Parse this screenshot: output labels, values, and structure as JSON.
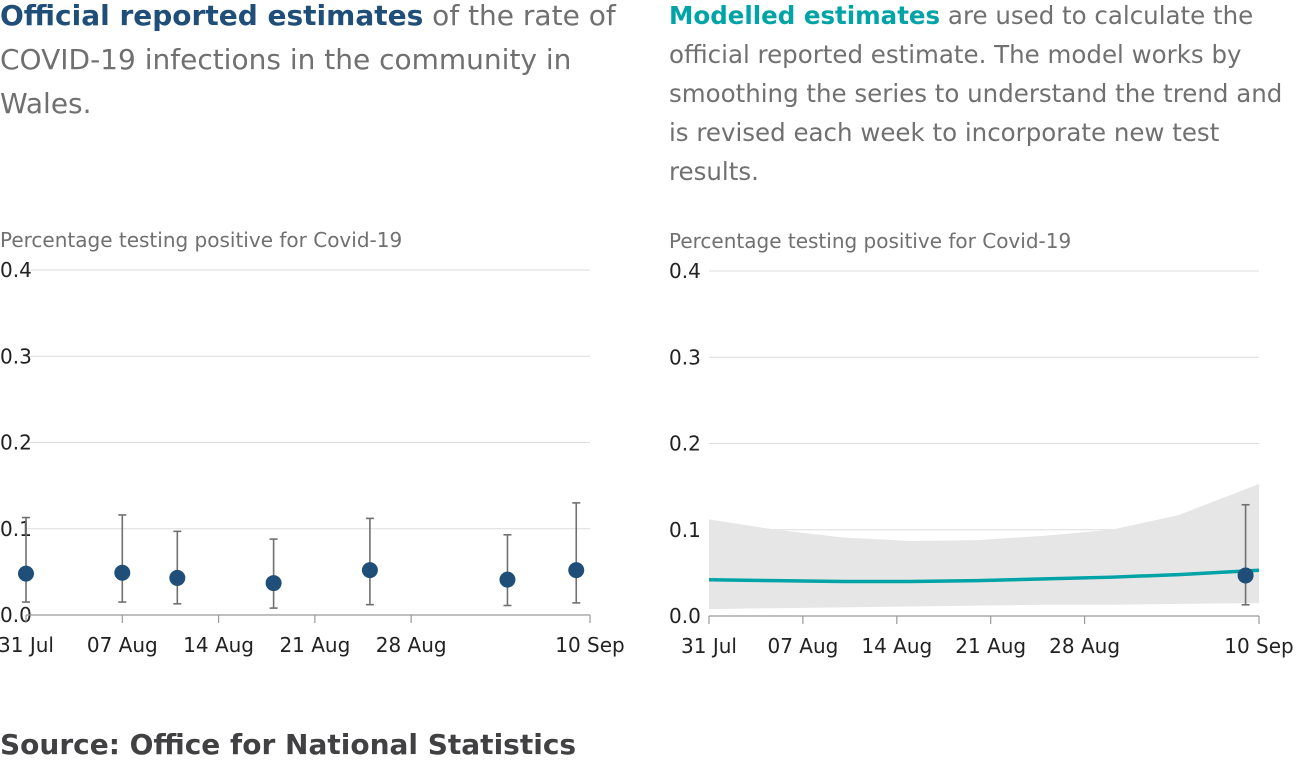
{
  "left_intro": {
    "highlight": "Official reported estimates",
    "rest": " of the rate of COVID-19 infections in the community in Wales."
  },
  "right_intro": {
    "highlight": "Modelled estimates",
    "rest": " are used to calculate the official reported estimate. The model works by smoothing the series to understand the trend and is revised each week to incorporate new test results."
  },
  "source": "Source: Office for National Statistics",
  "colors": {
    "official": "#1f4e79",
    "modelled": "#00a3a6",
    "band": "#e6e6e6",
    "error": "#707070",
    "grid": "#dddddd"
  },
  "chart_data": [
    {
      "type": "scatter",
      "ylabel": "Percentage testing positive for Covid-19",
      "ylim": [
        0,
        0.4
      ],
      "yticks": [
        "0.0",
        "0.1",
        "0.2",
        "0.3",
        "0.4"
      ],
      "x_range": [
        "2020-07-31",
        "2020-09-10"
      ],
      "xticks": [
        {
          "date": "2020-07-31",
          "label": "31 Jul"
        },
        {
          "date": "2020-08-07",
          "label": "07 Aug"
        },
        {
          "date": "2020-08-14",
          "label": "14 Aug"
        },
        {
          "date": "2020-08-21",
          "label": "21 Aug"
        },
        {
          "date": "2020-08-28",
          "label": "28 Aug"
        },
        {
          "date": "2020-09-10",
          "label": "10 Sep"
        }
      ],
      "points": [
        {
          "date": "2020-07-31",
          "y": 0.048,
          "lower": 0.015,
          "upper": 0.113
        },
        {
          "date": "2020-08-07",
          "y": 0.049,
          "lower": 0.015,
          "upper": 0.116
        },
        {
          "date": "2020-08-11",
          "y": 0.043,
          "lower": 0.013,
          "upper": 0.097
        },
        {
          "date": "2020-08-18",
          "y": 0.037,
          "lower": 0.008,
          "upper": 0.088
        },
        {
          "date": "2020-08-25",
          "y": 0.052,
          "lower": 0.012,
          "upper": 0.112
        },
        {
          "date": "2020-09-04",
          "y": 0.041,
          "lower": 0.011,
          "upper": 0.093
        },
        {
          "date": "2020-09-09",
          "y": 0.052,
          "lower": 0.014,
          "upper": 0.13
        }
      ]
    },
    {
      "type": "line",
      "ylabel": "Percentage testing positive for Covid-19",
      "ylim": [
        0,
        0.4
      ],
      "yticks": [
        "0.0",
        "0.1",
        "0.2",
        "0.3",
        "0.4"
      ],
      "x_range": [
        "2020-07-31",
        "2020-09-10"
      ],
      "xticks": [
        {
          "date": "2020-07-31",
          "label": "31 Jul"
        },
        {
          "date": "2020-08-07",
          "label": "07 Aug"
        },
        {
          "date": "2020-08-14",
          "label": "14 Aug"
        },
        {
          "date": "2020-08-21",
          "label": "21 Aug"
        },
        {
          "date": "2020-08-28",
          "label": "28 Aug"
        },
        {
          "date": "2020-09-10",
          "label": "10 Sep"
        }
      ],
      "line": [
        {
          "date": "2020-07-31",
          "y": 0.042
        },
        {
          "date": "2020-08-05",
          "y": 0.041
        },
        {
          "date": "2020-08-10",
          "y": 0.04
        },
        {
          "date": "2020-08-15",
          "y": 0.04
        },
        {
          "date": "2020-08-20",
          "y": 0.041
        },
        {
          "date": "2020-08-25",
          "y": 0.043
        },
        {
          "date": "2020-08-30",
          "y": 0.045
        },
        {
          "date": "2020-09-04",
          "y": 0.048
        },
        {
          "date": "2020-09-10",
          "y": 0.053
        }
      ],
      "band": [
        {
          "date": "2020-07-31",
          "lower": 0.008,
          "upper": 0.112
        },
        {
          "date": "2020-08-05",
          "lower": 0.009,
          "upper": 0.1
        },
        {
          "date": "2020-08-10",
          "lower": 0.01,
          "upper": 0.091
        },
        {
          "date": "2020-08-15",
          "lower": 0.011,
          "upper": 0.087
        },
        {
          "date": "2020-08-20",
          "lower": 0.012,
          "upper": 0.088
        },
        {
          "date": "2020-08-25",
          "lower": 0.013,
          "upper": 0.093
        },
        {
          "date": "2020-08-30",
          "lower": 0.013,
          "upper": 0.1
        },
        {
          "date": "2020-09-04",
          "lower": 0.014,
          "upper": 0.117
        },
        {
          "date": "2020-09-10",
          "lower": 0.015,
          "upper": 0.153
        }
      ],
      "points": [
        {
          "date": "2020-09-09",
          "y": 0.047,
          "lower": 0.013,
          "upper": 0.129
        }
      ]
    }
  ]
}
